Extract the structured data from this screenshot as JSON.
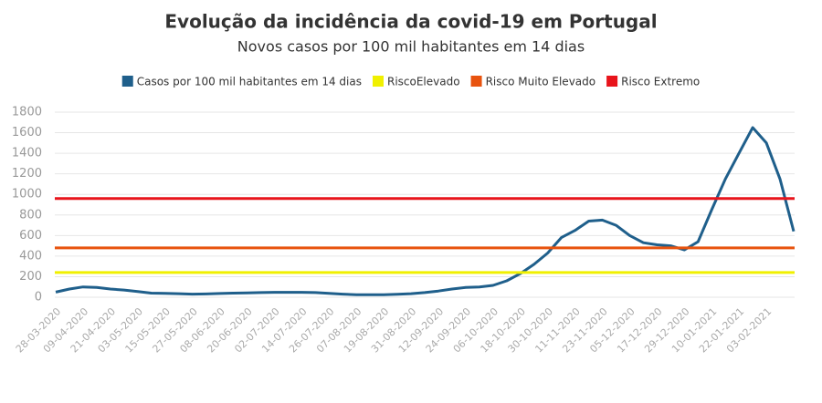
{
  "chart_data": {
    "type": "line",
    "title": "Evolução da incidência da covid-19 em Portugal",
    "subtitle": "Novos casos por 100 mil habitantes em 14 dias",
    "categories": [
      "28-03-2020",
      null,
      "09-04-2020",
      null,
      "21-04-2020",
      null,
      "03-05-2020",
      null,
      "15-05-2020",
      null,
      "27-05-2020",
      null,
      "08-06-2020",
      null,
      "20-06-2020",
      null,
      "02-07-2020",
      null,
      "14-07-2020",
      null,
      "26-07-2020",
      null,
      "07-08-2020",
      null,
      "19-08-2020",
      null,
      "31-08-2020",
      null,
      "12-09-2020",
      null,
      "24-09-2020",
      null,
      "06-10-2020",
      null,
      "18-10-2020",
      null,
      "30-10-2020",
      null,
      "11-11-2020",
      null,
      "23-11-2020",
      null,
      "05-12-2020",
      null,
      "17-12-2020",
      null,
      "29-12-2020",
      null,
      "10-01-2021",
      null,
      "22-01-2021",
      null,
      "03-02-2021",
      null,
      null
    ],
    "series": [
      {
        "name": "Casos por 100 mil habitantes em 14 dias",
        "color": "#1f5f8b",
        "values": [
          50,
          80,
          100,
          95,
          80,
          70,
          55,
          40,
          38,
          35,
          30,
          32,
          36,
          40,
          42,
          45,
          48,
          48,
          48,
          45,
          38,
          30,
          25,
          24,
          25,
          28,
          35,
          45,
          60,
          80,
          95,
          100,
          115,
          160,
          230,
          320,
          430,
          580,
          650,
          740,
          750,
          700,
          600,
          530,
          510,
          500,
          460,
          540,
          850,
          1150,
          1400,
          1650,
          1500,
          1150,
          640
        ]
      }
    ],
    "reference_lines": [
      {
        "name": "RiscoElevado",
        "color": "#f0f000",
        "value": 240
      },
      {
        "name": "Risco Muito Elevado",
        "color": "#e8530e",
        "value": 480
      },
      {
        "name": "Risco Extremo",
        "color": "#e8141b",
        "value": 960
      }
    ],
    "ylim": [
      0,
      1800
    ],
    "yticks": [
      0,
      200,
      400,
      600,
      800,
      1000,
      1200,
      1400,
      1600,
      1800
    ],
    "grid": true
  }
}
